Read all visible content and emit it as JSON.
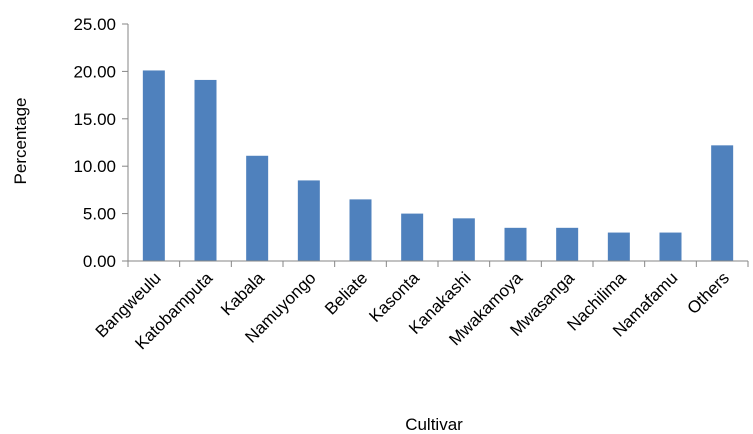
{
  "chart_data": {
    "type": "bar",
    "title": "",
    "xlabel": "Cultivar",
    "ylabel": "Percentage",
    "categories": [
      "Bangweulu",
      "Katobamputa",
      "Kabala",
      "Namuyongo",
      "Beliate",
      "Kasonta",
      "Kanakashi",
      "Mwakamoya",
      "Mwasanga",
      "Nachilima",
      "Namafamu",
      "Others"
    ],
    "values": [
      20.1,
      19.1,
      11.1,
      8.5,
      6.5,
      5.0,
      4.5,
      3.5,
      3.5,
      3.0,
      3.0,
      12.2
    ],
    "ylim": [
      0,
      25
    ],
    "yticks": [
      "0.00",
      "5.00",
      "10.00",
      "15.00",
      "20.00",
      "25.00"
    ],
    "grid": false,
    "legend": "none",
    "bar_color": "#4f81bd"
  }
}
